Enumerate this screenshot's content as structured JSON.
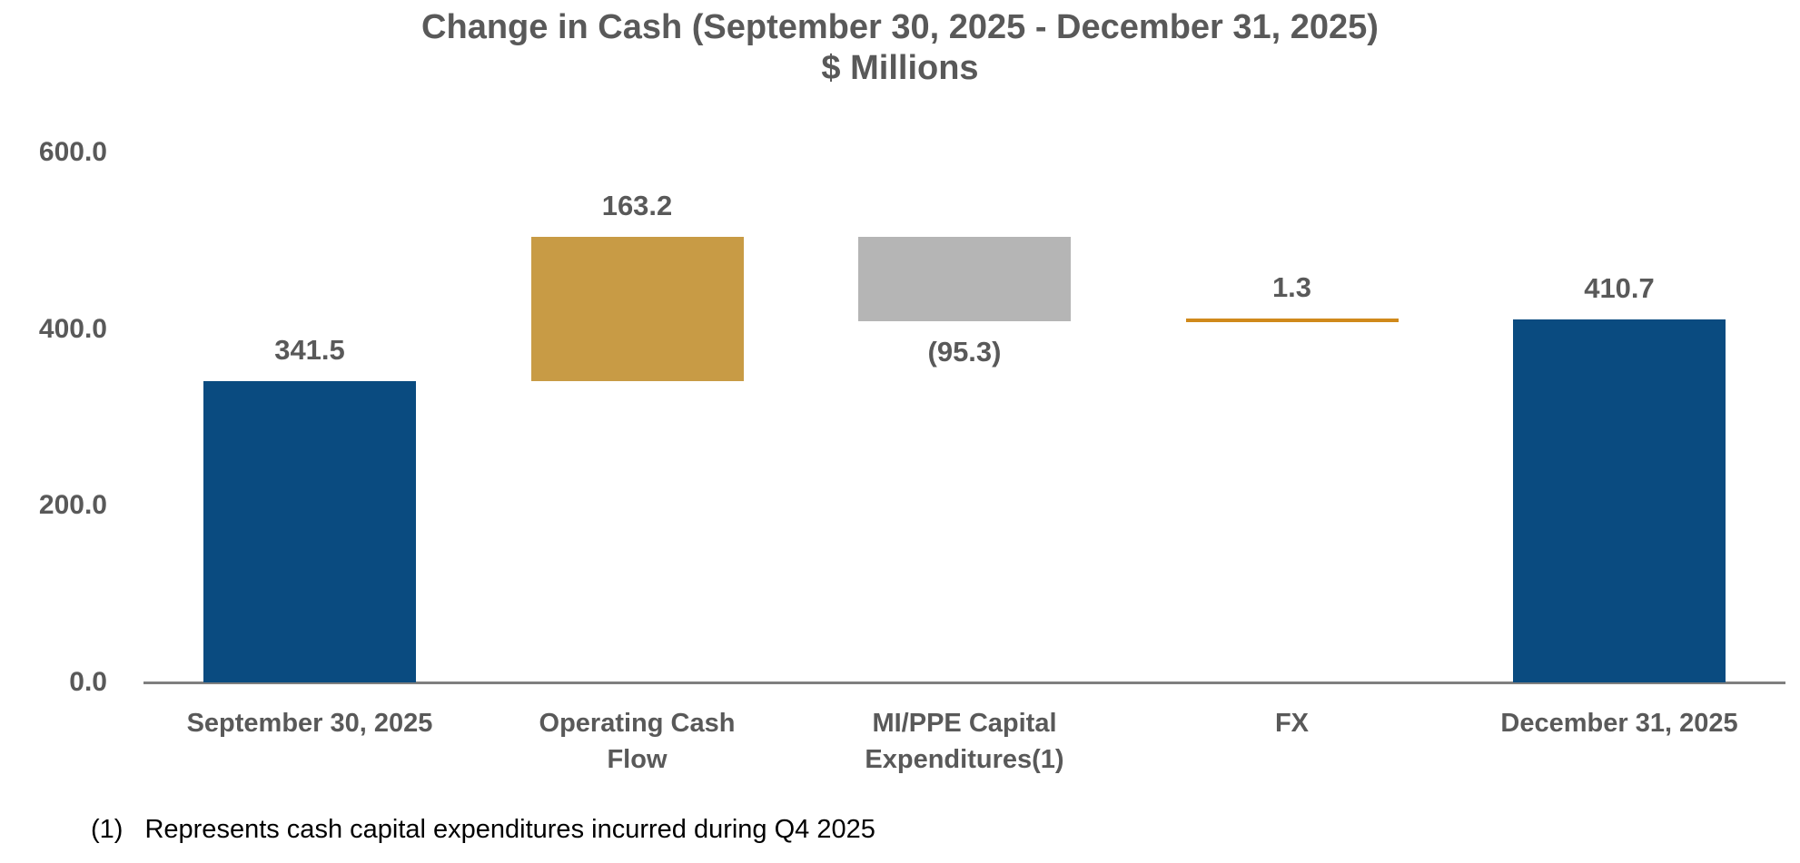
{
  "title": {
    "line1": "Change in Cash (September 30, 2025 - December 31, 2025)",
    "line2": "$ Millions"
  },
  "footnote": {
    "marker": "(1)",
    "text": "Represents cash capital expenditures incurred during Q4 2025"
  },
  "chart_data": {
    "type": "bar",
    "subtype": "waterfall",
    "title": "Change in Cash (September 30, 2025 - December 31, 2025)",
    "subtitle": "$ Millions",
    "categories": [
      "September 30, 2025",
      "Operating Cash Flow",
      "MI/PPE Capital Expenditures(1)",
      "FX",
      "December 31, 2025"
    ],
    "series": [
      {
        "name": "Change in Cash",
        "values": [
          341.5,
          163.2,
          -95.3,
          1.3,
          410.7
        ]
      }
    ],
    "bars": [
      {
        "label": "September 30, 2025",
        "label_lines": [
          "September 30, 2025"
        ],
        "value": 341.5,
        "display": "341.5",
        "kind": "total",
        "segment_start": 0.0,
        "segment_end": 341.5,
        "color": "#0a4b80",
        "label_position": "above"
      },
      {
        "label": "Operating Cash Flow",
        "label_lines": [
          "Operating Cash",
          "Flow"
        ],
        "value": 163.2,
        "display": "163.2",
        "kind": "delta",
        "segment_start": 341.5,
        "segment_end": 504.7,
        "color": "#c89b45",
        "label_position": "above"
      },
      {
        "label": "MI/PPE Capital Expenditures(1)",
        "label_lines": [
          "MI/PPE Capital",
          "Expenditures(1)"
        ],
        "value": -95.3,
        "display": "(95.3)",
        "kind": "delta",
        "segment_start": 504.7,
        "segment_end": 409.4,
        "color": "#b5b5b5",
        "label_position": "below"
      },
      {
        "label": "FX",
        "label_lines": [
          "FX"
        ],
        "value": 1.3,
        "display": "1.3",
        "kind": "delta",
        "segment_start": 409.4,
        "segment_end": 410.7,
        "color": "#d0891b",
        "label_position": "above"
      },
      {
        "label": "December 31, 2025",
        "label_lines": [
          "December 31, 2025"
        ],
        "value": 410.7,
        "display": "410.7",
        "kind": "total",
        "segment_start": 0.0,
        "segment_end": 410.7,
        "color": "#0a4b80",
        "label_position": "above"
      }
    ],
    "y_axis": {
      "ticks": [
        "0.0",
        "200.0",
        "400.0",
        "600.0"
      ],
      "tick_values": [
        0,
        200,
        400,
        600
      ],
      "min": 0,
      "max": 600
    },
    "xlabel": "",
    "ylabel": "",
    "grid": false,
    "legend": "none",
    "annotations": [
      "(1) Represents cash capital expenditures incurred during Q4 2025"
    ],
    "colors": {
      "total_bar": "#0a4b80",
      "increase_bar": "#c89b45",
      "decrease_bar": "#b5b5b5",
      "fx_line": "#d0891b",
      "text": "#595959",
      "axis_line": "#7f7f7f",
      "footnote_text": "#000000"
    }
  }
}
